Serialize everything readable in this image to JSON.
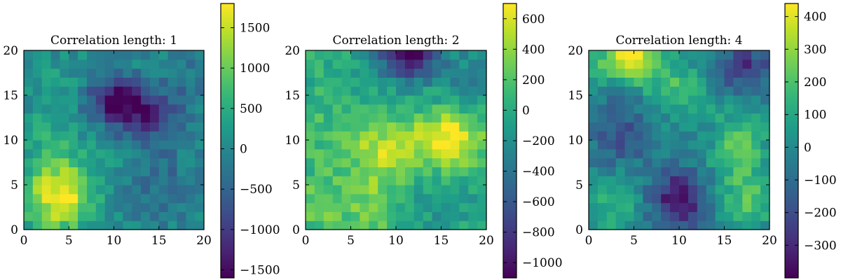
{
  "chart_data": [
    {
      "type": "heatmap",
      "title": "Correlation length: 1",
      "xlim": [
        0,
        20
      ],
      "ylim": [
        0,
        20
      ],
      "xticks": [
        0,
        5,
        10,
        15,
        20
      ],
      "yticks": [
        0,
        5,
        10,
        15,
        20
      ],
      "grid": [
        20,
        20
      ],
      "colormap": "viridis",
      "colorbar": {
        "range": [
          -1600,
          1800
        ],
        "ticks": [
          -1500,
          -1000,
          -500,
          0,
          500,
          1000,
          1500
        ],
        "tick_labels": [
          "−1500",
          "−1000",
          "−500",
          "0",
          "500",
          "1000",
          "1500"
        ]
      },
      "features": [
        {
          "x": 4,
          "y": 3.5,
          "value": 1700,
          "sx": 2.6,
          "sy": 2.6
        },
        {
          "x": 10,
          "y": 14.5,
          "value": -1450,
          "sx": 2.4,
          "sy": 1.8
        },
        {
          "x": 13.5,
          "y": 12.5,
          "value": -1100,
          "sx": 2.2,
          "sy": 2.0
        },
        {
          "x": 3,
          "y": 9,
          "value": 500,
          "sx": 2.5,
          "sy": 3.0
        },
        {
          "x": 15,
          "y": 5,
          "value": -400,
          "sx": 3.0,
          "sy": 3.0
        },
        {
          "x": 5,
          "y": 16,
          "value": 250,
          "sx": 3.0,
          "sy": 2.5
        },
        {
          "x": 18,
          "y": 16,
          "value": -300,
          "sx": 2.5,
          "sy": 2.5
        },
        {
          "x": 9,
          "y": 7,
          "value": 200,
          "sx": 2.5,
          "sy": 2.5
        }
      ]
    },
    {
      "type": "heatmap",
      "title": "Correlation length: 2",
      "xlim": [
        0,
        20
      ],
      "ylim": [
        0,
        20
      ],
      "xticks": [
        0,
        5,
        10,
        15,
        20
      ],
      "yticks": [
        0,
        5,
        10,
        15,
        20
      ],
      "grid": [
        20,
        20
      ],
      "colormap": "viridis",
      "colorbar": {
        "range": [
          -1100,
          700
        ],
        "ticks": [
          -1000,
          -800,
          -600,
          -400,
          -200,
          0,
          200,
          400,
          600
        ],
        "tick_labels": [
          "−1000",
          "−800",
          "−600",
          "−400",
          "−200",
          "0",
          "200",
          "400",
          "600"
        ]
      },
      "features": [
        {
          "x": 16,
          "y": 10,
          "value": 700,
          "sx": 2.5,
          "sy": 2.2
        },
        {
          "x": 9,
          "y": 9.5,
          "value": 450,
          "sx": 3.5,
          "sy": 2.0
        },
        {
          "x": 11.5,
          "y": 19.5,
          "value": -1050,
          "sx": 2.5,
          "sy": 2.0
        },
        {
          "x": 8,
          "y": 4,
          "value": 350,
          "sx": 2.0,
          "sy": 3.0
        },
        {
          "x": 2,
          "y": 3,
          "value": 300,
          "sx": 2.5,
          "sy": 2.5
        },
        {
          "x": 2,
          "y": 12,
          "value": 100,
          "sx": 3.0,
          "sy": 3.0
        },
        {
          "x": 14,
          "y": 3,
          "value": -150,
          "sx": 3.0,
          "sy": 2.5
        },
        {
          "x": 18,
          "y": 17,
          "value": -250,
          "sx": 2.5,
          "sy": 2.5
        }
      ]
    },
    {
      "type": "heatmap",
      "title": "Correlation length: 4",
      "xlim": [
        0,
        20
      ],
      "ylim": [
        0,
        20
      ],
      "xticks": [
        0,
        5,
        10,
        15,
        20
      ],
      "yticks": [
        0,
        5,
        10,
        15,
        20
      ],
      "grid": [
        20,
        20
      ],
      "colormap": "viridis",
      "colorbar": {
        "range": [
          -400,
          440
        ],
        "ticks": [
          -300,
          -200,
          -100,
          0,
          100,
          200,
          300,
          400
        ],
        "tick_labels": [
          "−300",
          "−200",
          "−100",
          "0",
          "100",
          "200",
          "300",
          "400"
        ]
      },
      "features": [
        {
          "x": 4.5,
          "y": 19,
          "value": 430,
          "sx": 2.5,
          "sy": 1.8
        },
        {
          "x": 10,
          "y": 3.5,
          "value": -390,
          "sx": 2.2,
          "sy": 2.2
        },
        {
          "x": 16.5,
          "y": 9,
          "value": 230,
          "sx": 2.0,
          "sy": 2.5
        },
        {
          "x": 17.5,
          "y": 3.5,
          "value": 200,
          "sx": 2.0,
          "sy": 2.0
        },
        {
          "x": 17,
          "y": 18,
          "value": -270,
          "sx": 2.5,
          "sy": 1.8
        },
        {
          "x": 3.5,
          "y": 11,
          "value": -180,
          "sx": 2.5,
          "sy": 3.0
        },
        {
          "x": 10,
          "y": 15.5,
          "value": 170,
          "sx": 2.5,
          "sy": 2.0
        },
        {
          "x": 2.5,
          "y": 3,
          "value": 160,
          "sx": 2.0,
          "sy": 2.0
        }
      ]
    }
  ]
}
